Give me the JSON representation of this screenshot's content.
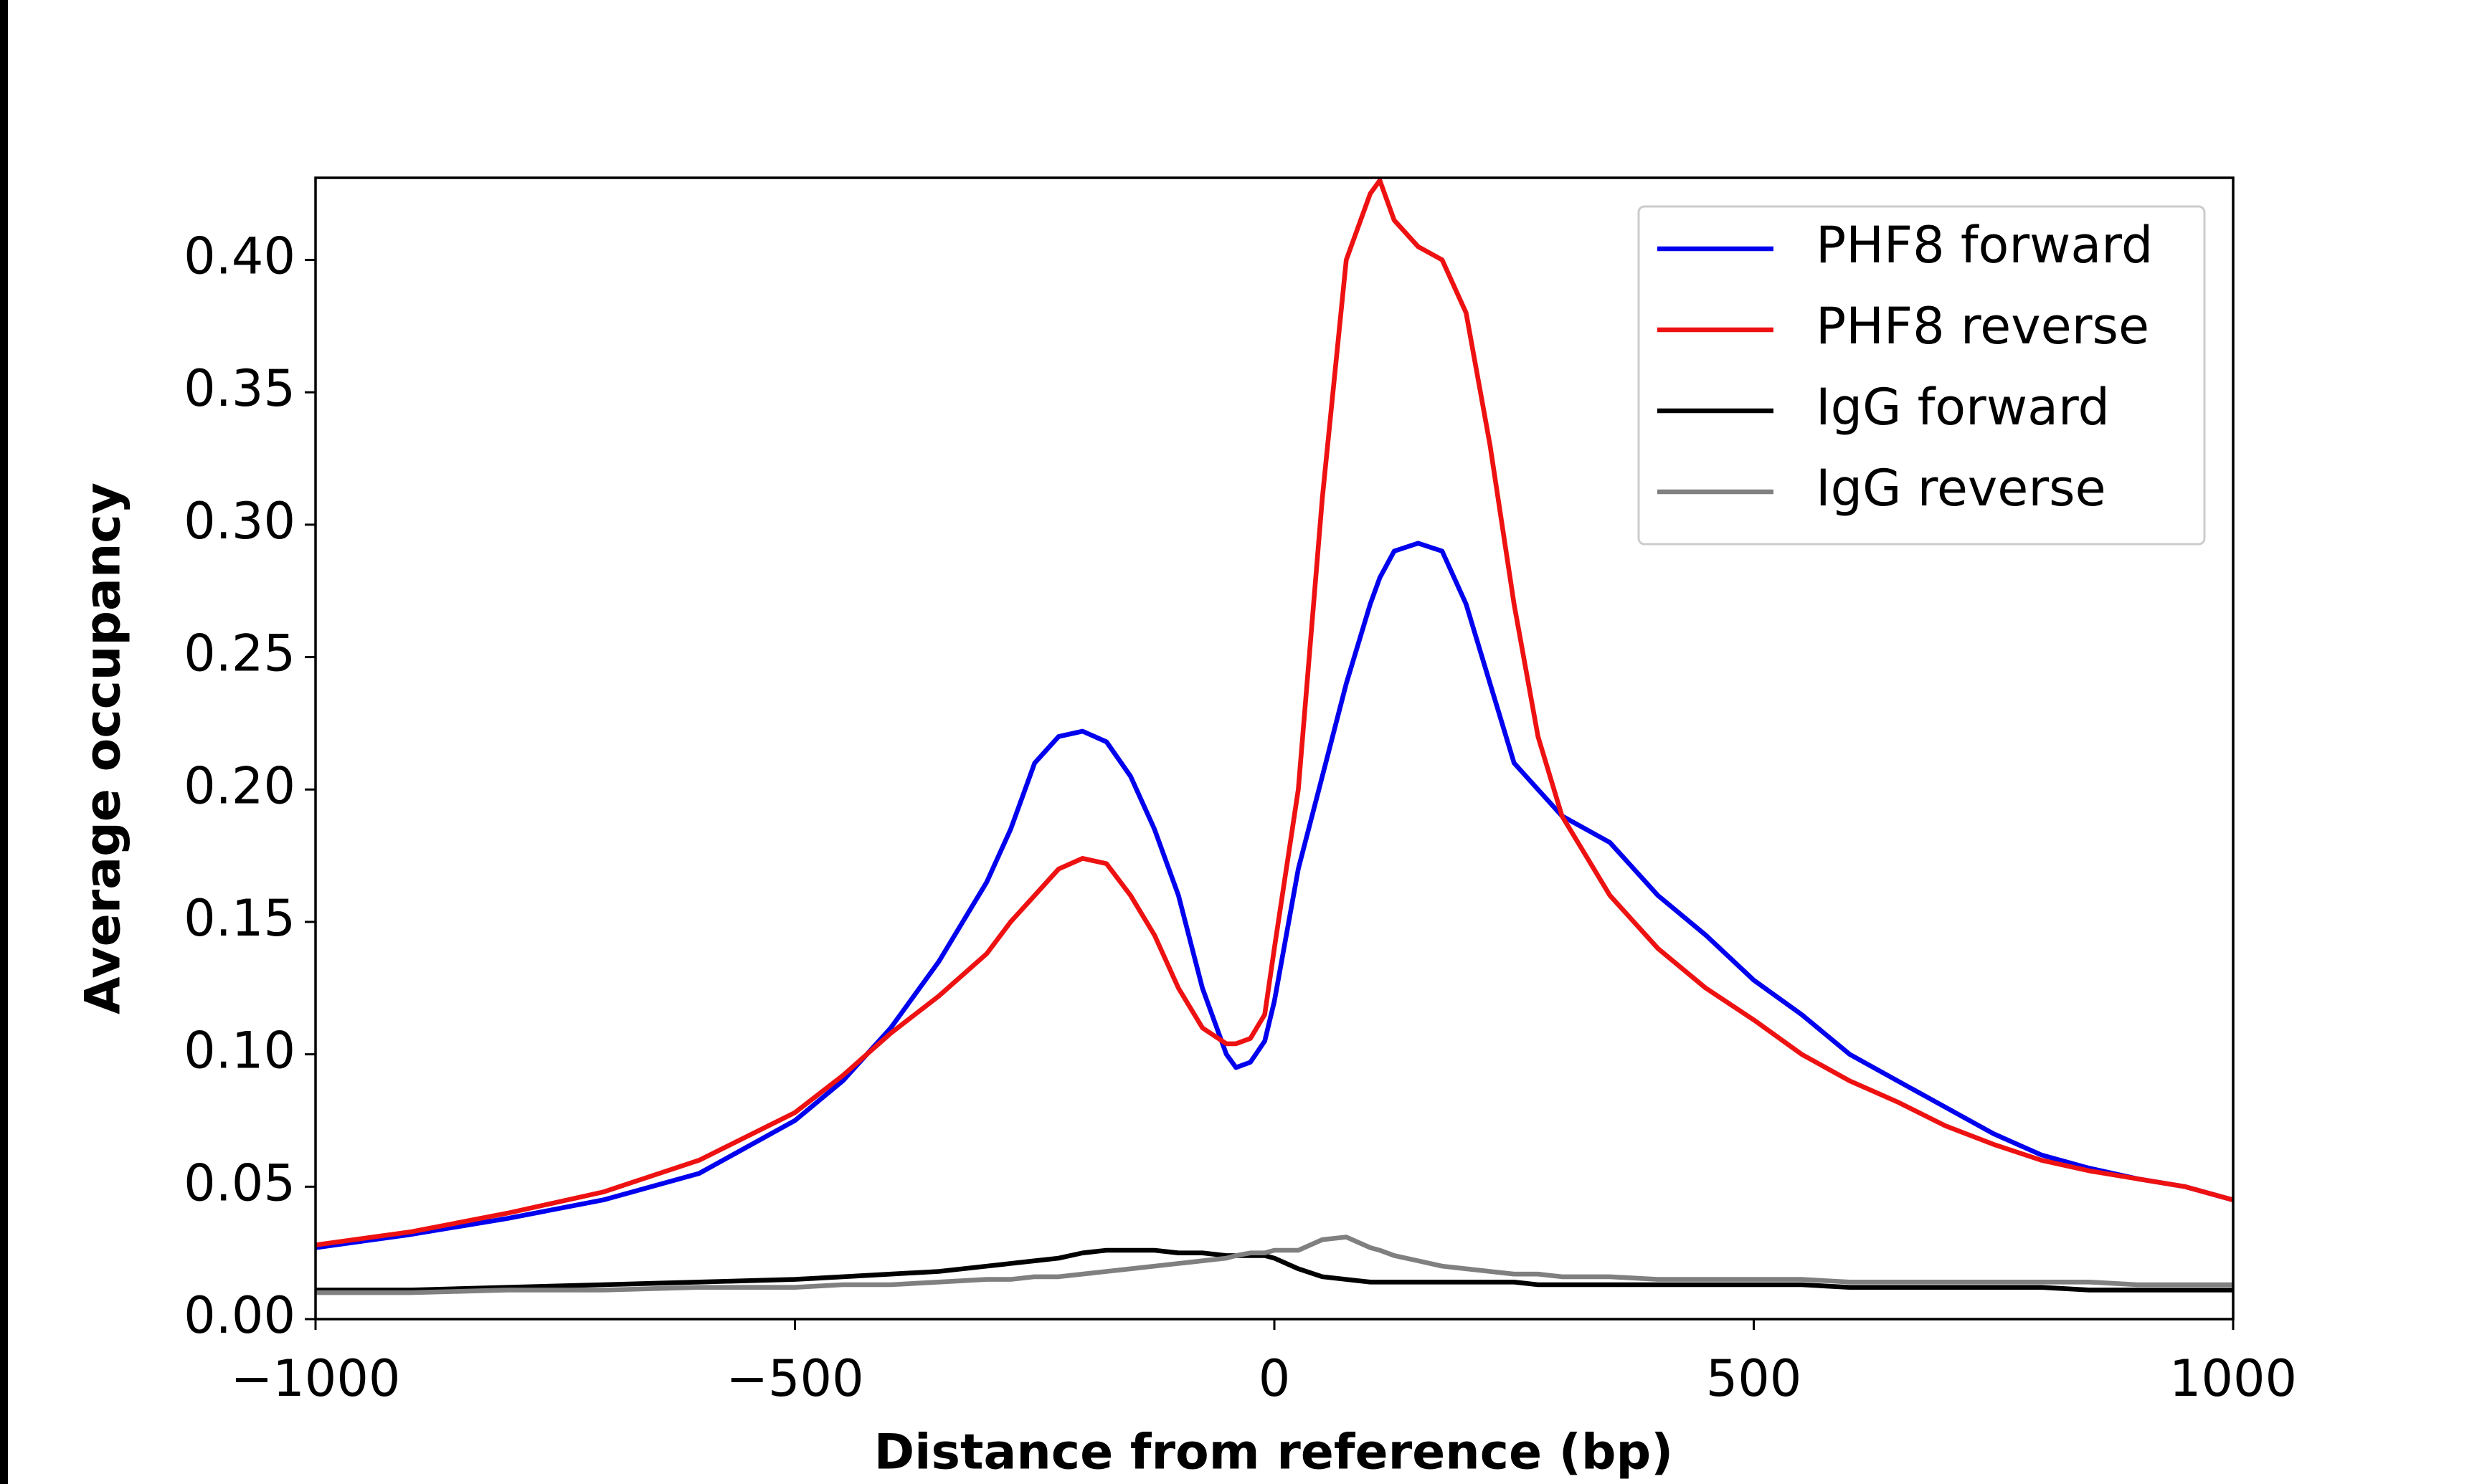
{
  "chart_data": {
    "type": "line",
    "xlabel": "Distance from reference (bp)",
    "ylabel": "Average occupancy",
    "x": [
      -1000,
      -900,
      -800,
      -700,
      -600,
      -500,
      -450,
      -400,
      -350,
      -300,
      -275,
      -250,
      -225,
      -200,
      -175,
      -150,
      -125,
      -100,
      -75,
      -50,
      -40,
      -25,
      -10,
      0,
      25,
      50,
      75,
      100,
      110,
      125,
      150,
      175,
      200,
      225,
      250,
      275,
      300,
      350,
      400,
      450,
      500,
      550,
      600,
      650,
      700,
      750,
      800,
      850,
      900,
      950,
      1000
    ],
    "series": [
      {
        "name": "PHF8 forward",
        "color": "#0000ee",
        "values": [
          0.027,
          0.032,
          0.038,
          0.045,
          0.055,
          0.075,
          0.09,
          0.11,
          0.135,
          0.165,
          0.185,
          0.21,
          0.22,
          0.222,
          0.218,
          0.205,
          0.185,
          0.16,
          0.125,
          0.1,
          0.095,
          0.097,
          0.105,
          0.12,
          0.17,
          0.205,
          0.24,
          0.27,
          0.28,
          0.29,
          0.293,
          0.29,
          0.27,
          0.24,
          0.21,
          0.2,
          0.19,
          0.18,
          0.16,
          0.145,
          0.128,
          0.115,
          0.1,
          0.09,
          0.08,
          0.07,
          0.062,
          0.057,
          0.053,
          0.05,
          0.045
        ]
      },
      {
        "name": "PHF8 reverse",
        "color": "#ee1111",
        "values": [
          0.028,
          0.033,
          0.04,
          0.048,
          0.06,
          0.078,
          0.092,
          0.108,
          0.122,
          0.138,
          0.15,
          0.16,
          0.17,
          0.174,
          0.172,
          0.16,
          0.145,
          0.125,
          0.11,
          0.104,
          0.104,
          0.106,
          0.115,
          0.14,
          0.2,
          0.31,
          0.4,
          0.425,
          0.43,
          0.415,
          0.405,
          0.4,
          0.38,
          0.33,
          0.27,
          0.22,
          0.19,
          0.16,
          0.14,
          0.125,
          0.113,
          0.1,
          0.09,
          0.082,
          0.073,
          0.066,
          0.06,
          0.056,
          0.053,
          0.05,
          0.045
        ]
      },
      {
        "name": "IgG forward",
        "color": "#000000",
        "values": [
          0.011,
          0.011,
          0.012,
          0.013,
          0.014,
          0.015,
          0.016,
          0.017,
          0.018,
          0.02,
          0.021,
          0.022,
          0.023,
          0.025,
          0.026,
          0.026,
          0.026,
          0.025,
          0.025,
          0.024,
          0.024,
          0.024,
          0.024,
          0.023,
          0.019,
          0.016,
          0.015,
          0.014,
          0.014,
          0.014,
          0.014,
          0.014,
          0.014,
          0.014,
          0.014,
          0.013,
          0.013,
          0.013,
          0.013,
          0.013,
          0.013,
          0.013,
          0.012,
          0.012,
          0.012,
          0.012,
          0.012,
          0.011,
          0.011,
          0.011,
          0.011
        ]
      },
      {
        "name": "IgG reverse",
        "color": "#808080",
        "values": [
          0.01,
          0.01,
          0.011,
          0.011,
          0.012,
          0.012,
          0.013,
          0.013,
          0.014,
          0.015,
          0.015,
          0.016,
          0.016,
          0.017,
          0.018,
          0.019,
          0.02,
          0.021,
          0.022,
          0.023,
          0.024,
          0.025,
          0.025,
          0.026,
          0.026,
          0.03,
          0.031,
          0.027,
          0.026,
          0.024,
          0.022,
          0.02,
          0.019,
          0.018,
          0.017,
          0.017,
          0.016,
          0.016,
          0.015,
          0.015,
          0.015,
          0.015,
          0.014,
          0.014,
          0.014,
          0.014,
          0.014,
          0.014,
          0.013,
          0.013,
          0.013
        ]
      }
    ],
    "xlim": [
      -1000,
      1000
    ],
    "ylim": [
      0,
      0.431
    ],
    "xticks": [
      {
        "value": -1000,
        "label": "−1000"
      },
      {
        "value": -500,
        "label": "−500"
      },
      0,
      500,
      1000
    ],
    "yticks": [
      {
        "value": 0,
        "label": "0.00"
      },
      {
        "value": 0.05,
        "label": "0.05"
      },
      {
        "value": 0.1,
        "label": "0.10"
      },
      {
        "value": 0.15,
        "label": "0.15"
      },
      {
        "value": 0.2,
        "label": "0.20"
      },
      {
        "value": 0.25,
        "label": "0.25"
      },
      {
        "value": 0.3,
        "label": "0.30"
      },
      {
        "value": 0.35,
        "label": "0.35"
      },
      {
        "value": 0.4,
        "label": "0.40"
      }
    ],
    "legend": "upper right"
  }
}
